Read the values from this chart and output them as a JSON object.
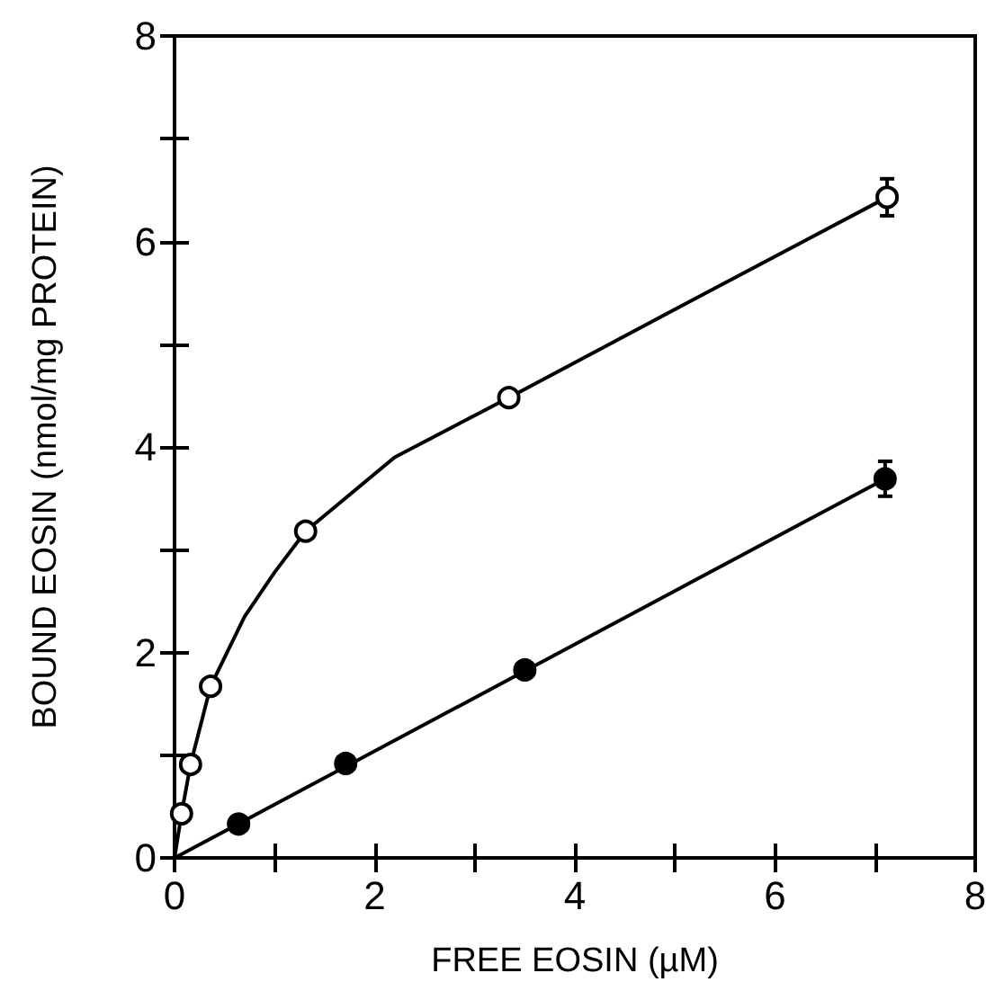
{
  "chart_data": {
    "type": "scatter",
    "xlabel": "FREE EOSIN (µM)",
    "ylabel": "BOUND EOSIN (nmol/mg PROTEIN)",
    "xlim": [
      0,
      8
    ],
    "ylim": [
      0,
      8
    ],
    "xticks": [
      0,
      {
        "value": 1,
        "label": null
      },
      2,
      {
        "value": 3,
        "label": null
      },
      4,
      {
        "value": 5,
        "label": null
      },
      6,
      {
        "value": 7,
        "label": null
      },
      8
    ],
    "yticks": [
      0,
      {
        "value": 1,
        "label": null
      },
      2,
      {
        "value": 3,
        "label": null
      },
      4,
      {
        "value": 5,
        "label": null
      },
      6,
      {
        "value": 7,
        "label": null
      },
      8
    ],
    "grid": false,
    "marker": "circle",
    "series": [
      {
        "color": "#ffffff",
        "x": [
          0.07,
          0.16,
          0.36,
          1.31,
          3.34,
          7.12
        ],
        "values": [
          0.43,
          0.91,
          1.67,
          3.18,
          4.48,
          6.43
        ],
        "errors": [
          null,
          null,
          null,
          null,
          null,
          0.18
        ]
      },
      {
        "color": "#000000",
        "x": [
          0.64,
          1.71,
          3.5,
          7.1
        ],
        "values": [
          0.33,
          0.92,
          1.83,
          3.69
        ],
        "errors": [
          null,
          null,
          null,
          0.17
        ]
      },
      {
        "type": "line",
        "color": "#000000",
        "marker": "none",
        "line_style": "solid",
        "x": [
          0,
          0.07,
          0.16,
          0.36,
          0.7,
          1.0,
          1.31,
          2.2,
          3.34,
          5,
          7.12
        ],
        "values": [
          0,
          0.43,
          0.91,
          1.67,
          2.35,
          2.78,
          3.18,
          3.9,
          4.48,
          5.34,
          6.43
        ]
      },
      {
        "type": "line",
        "color": "#000000",
        "marker": "none",
        "line_style": "solid",
        "x": [
          0,
          7.1
        ],
        "values": [
          0,
          3.69
        ]
      }
    ]
  }
}
